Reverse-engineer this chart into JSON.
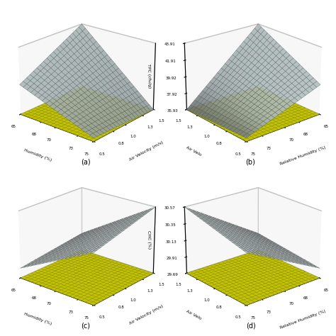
{
  "fig_size": [
    4.74,
    4.74
  ],
  "dpi": 100,
  "background_color": "#ffffff",
  "surface_color": "#c8d8d8",
  "surface_alpha": 0.9,
  "floor_color": "#ffff00",
  "grid_color": "#555555",
  "humidity_range": [
    65,
    75
  ],
  "velocity_range": [
    0.5,
    1.5
  ],
  "plots": [
    {
      "label": "(a)",
      "xlabel": "Humidity (%)",
      "ylabel": "Air Velocity (m/s)",
      "zlabel": "",
      "zlim": [
        0,
        1
      ],
      "zticks": [],
      "surface_type": "twisted_fall",
      "elev": 22,
      "azim": -50,
      "x_reverse": false
    },
    {
      "label": "(b)",
      "xlabel": "Relative Humidity (%)",
      "ylabel": "Air Velo",
      "zlabel": "TPC (cfu/g)",
      "zlim": [
        35.93,
        43.91
      ],
      "zticks": [
        35.93,
        37.92,
        39.92,
        41.91,
        43.91
      ],
      "surface_type": "twisted_fall",
      "elev": 22,
      "azim": -130,
      "x_reverse": true
    },
    {
      "label": "(c)",
      "xlabel": "Humidity (%)",
      "ylabel": "Air Velocity (m/s)",
      "zlabel": "",
      "zlim": [
        0,
        1
      ],
      "zticks": [],
      "surface_type": "curved_rise",
      "elev": 22,
      "azim": -50,
      "x_reverse": false
    },
    {
      "label": "(d)",
      "xlabel": "Relative Humidity (%)",
      "ylabel": "Air Velo",
      "zlabel": "CHC (%)",
      "zlim": [
        29.69,
        30.57
      ],
      "zticks": [
        29.69,
        29.91,
        30.13,
        30.35,
        30.57
      ],
      "surface_type": "curved_rise",
      "elev": 22,
      "azim": -130,
      "x_reverse": true
    }
  ]
}
